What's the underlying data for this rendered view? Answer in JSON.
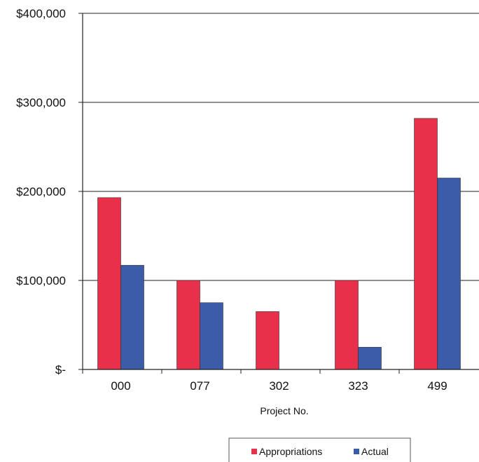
{
  "chart_data": {
    "type": "bar",
    "categories": [
      "000",
      "077",
      "302",
      "323",
      "499"
    ],
    "series": [
      {
        "name": "Appropriations",
        "values": [
          193000,
          100000,
          65000,
          100000,
          282000
        ],
        "color": "#e8304a"
      },
      {
        "name": "Actual",
        "values": [
          117000,
          75000,
          0,
          25000,
          215000
        ],
        "color": "#3b5ca8"
      }
    ],
    "ytick_labels": [
      "$-",
      "$100,000",
      "$200,000",
      "$300,000",
      "$400,000"
    ],
    "yticks": [
      0,
      100000,
      200000,
      300000,
      400000
    ],
    "ylim": [
      0,
      400000
    ],
    "xlabel": "Project No.",
    "ylabel": "",
    "title": "",
    "grid": true,
    "legend_position": "bottom-right"
  }
}
